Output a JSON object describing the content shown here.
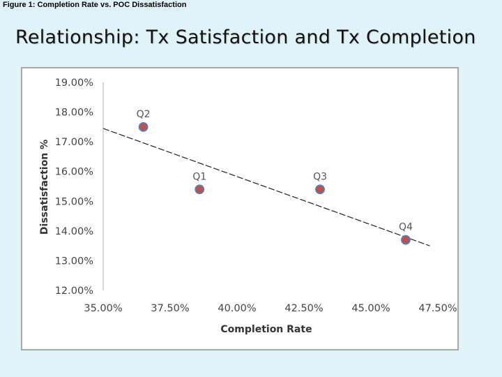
{
  "caption": "Figure 1: Completion Rate vs. POC Dissatisfaction",
  "slide_title": "Relationship: Tx Satisfaction and Tx Completion",
  "chart_data": {
    "type": "scatter",
    "title": "",
    "xlabel": "Completion Rate",
    "ylabel": "Dissatisfaction %",
    "xlim": [
      35.0,
      47.5
    ],
    "ylim": [
      12.0,
      19.0
    ],
    "x_ticks": [
      "35.00%",
      "37.50%",
      "40.00%",
      "42.50%",
      "45.00%",
      "47.50%"
    ],
    "x_tick_values": [
      35.0,
      37.5,
      40.0,
      42.5,
      45.0,
      47.5
    ],
    "y_ticks": [
      "19.00%",
      "18.00%",
      "17.00%",
      "16.00%",
      "15.00%",
      "14.00%",
      "13.00%",
      "12.00%"
    ],
    "y_tick_values": [
      19.0,
      18.0,
      17.0,
      16.0,
      15.0,
      14.0,
      13.0,
      12.0
    ],
    "points": [
      {
        "label": "Q2",
        "x": 36.5,
        "y": 17.5
      },
      {
        "label": "Q1",
        "x": 38.6,
        "y": 15.4
      },
      {
        "label": "Q3",
        "x": 43.1,
        "y": 15.4
      },
      {
        "label": "Q4",
        "x": 46.3,
        "y": 13.7
      }
    ],
    "trendline": {
      "style": "dashed",
      "x": [
        35.0,
        47.2
      ],
      "y": [
        17.45,
        13.5
      ]
    },
    "grid": false,
    "legend": false,
    "colors": {
      "marker_fill": "#c0504d",
      "marker_edge": "#4f81bd",
      "trendline": "#222222",
      "axis": "#bfbfbf"
    }
  }
}
